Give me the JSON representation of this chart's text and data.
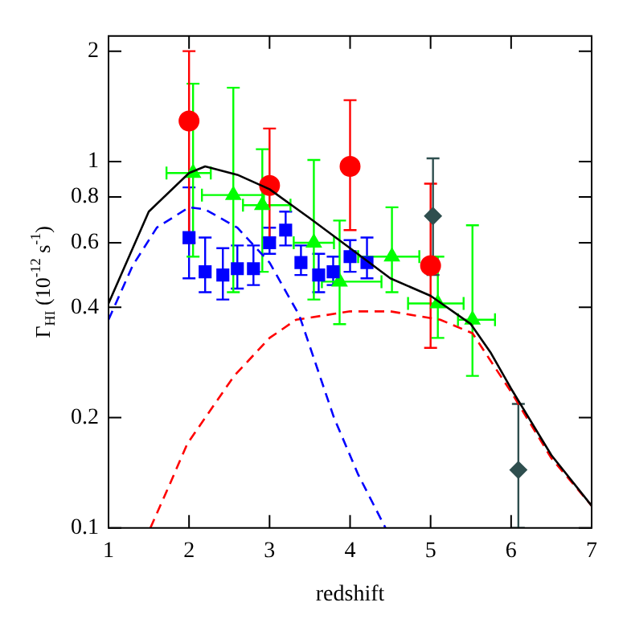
{
  "chart_data": {
    "type": "scatter",
    "xlabel": "redshift",
    "ylabel": "Γ$_{HI}$ (10$^{-12}$ s$^{-1}$)",
    "xlim": [
      1,
      7
    ],
    "xticks": [
      1,
      2,
      3,
      4,
      5,
      6,
      7
    ],
    "ylim": [
      0.1,
      2.2
    ],
    "yticks": [
      0.1,
      0.2,
      0.4,
      0.6,
      0.8,
      1,
      2
    ],
    "log": true,
    "grid": false,
    "legend": false,
    "series": [
      {
        "type": "line",
        "color": "#000000",
        "line_style": "solid",
        "marker": "none",
        "x": [
          1,
          1.5,
          2,
          2.2,
          2.6,
          3,
          3.5,
          4,
          4.5,
          5,
          5.5,
          5.75,
          6,
          6.5,
          7
        ],
        "values": [
          0.41,
          0.73,
          0.93,
          0.97,
          0.92,
          0.84,
          0.7,
          0.58,
          0.48,
          0.43,
          0.36,
          0.3,
          0.24,
          0.158,
          0.115
        ]
      },
      {
        "type": "line",
        "color": "#0000ff",
        "line_style": "dashed",
        "marker": "none",
        "x": [
          1,
          1.3,
          1.6,
          2,
          2.2,
          2.6,
          3,
          3.37,
          3.8,
          4.1,
          4.44
        ],
        "values": [
          0.37,
          0.52,
          0.66,
          0.75,
          0.74,
          0.66,
          0.53,
          0.38,
          0.2,
          0.14,
          0.1
        ]
      },
      {
        "type": "line",
        "color": "#ff0000",
        "line_style": "dashed",
        "marker": "none",
        "x": [
          1.52,
          1.75,
          1.98,
          2.56,
          3,
          3.33,
          4,
          4.5,
          5.12,
          5.52,
          6,
          6.5,
          7
        ],
        "values": [
          0.1,
          0.13,
          0.17,
          0.26,
          0.33,
          0.37,
          0.39,
          0.39,
          0.37,
          0.34,
          0.235,
          0.155,
          0.115
        ]
      },
      {
        "color": "#0000ff",
        "marker": "square",
        "x": [
          2,
          2.2,
          2.42,
          2.6,
          2.8,
          3,
          3.2,
          3.39,
          3.61,
          3.79,
          4,
          4.21
        ],
        "values": [
          0.62,
          0.5,
          0.49,
          0.51,
          0.51,
          0.6,
          0.65,
          0.53,
          0.49,
          0.5,
          0.55,
          0.53
        ],
        "errors": [
          [
            0.48,
            0.85
          ],
          [
            0.44,
            0.62
          ],
          [
            0.42,
            0.58
          ],
          [
            0.45,
            0.59
          ],
          [
            0.46,
            0.59
          ],
          [
            0.56,
            0.66
          ],
          [
            0.59,
            0.73
          ],
          [
            0.49,
            0.59
          ],
          [
            0.44,
            0.56
          ],
          [
            0.46,
            0.55
          ],
          [
            0.5,
            0.61
          ],
          [
            0.48,
            0.62
          ]
        ]
      },
      {
        "color": "#00ff00",
        "marker": "triangle",
        "x": [
          2.05,
          2.55,
          2.91,
          3.55,
          3.87,
          4.52,
          5.09,
          5.52
        ],
        "values": [
          0.93,
          0.81,
          0.76,
          0.6,
          0.47,
          0.55,
          0.41,
          0.37
        ],
        "errors": [
          [
            0.55,
            1.63
          ],
          [
            0.44,
            1.59
          ],
          [
            0.5,
            1.08
          ],
          [
            0.42,
            1.01
          ],
          [
            0.36,
            0.69
          ],
          [
            0.44,
            0.75
          ],
          [
            0.33,
            0.55
          ],
          [
            0.26,
            0.67
          ]
        ],
        "xerrors": [
          [
            1.72,
            2.27
          ],
          [
            2.16,
            2.93
          ],
          [
            2.67,
            3.26
          ],
          [
            3.3,
            3.8
          ],
          [
            3.65,
            4.39
          ],
          [
            4.1,
            4.86
          ],
          [
            4.72,
            5.41
          ],
          [
            5.34,
            5.8
          ]
        ]
      },
      {
        "color": "#ff0000",
        "marker": "circle",
        "x": [
          2,
          3,
          4,
          5
        ],
        "values": [
          1.29,
          0.86,
          0.97,
          0.52
        ],
        "errors": [
          [
            0.6,
            2
          ],
          [
            0.62,
            1.23
          ],
          [
            0.65,
            1.47
          ],
          [
            0.31,
            0.87
          ]
        ]
      },
      {
        "color": "#2f4f4f",
        "marker": "diamond",
        "x": [
          5.03,
          6.09
        ],
        "values": [
          0.71,
          0.144
        ],
        "errors": [
          [
            0.49,
            1.02
          ],
          [
            0.1,
            0.218
          ]
        ]
      }
    ]
  }
}
